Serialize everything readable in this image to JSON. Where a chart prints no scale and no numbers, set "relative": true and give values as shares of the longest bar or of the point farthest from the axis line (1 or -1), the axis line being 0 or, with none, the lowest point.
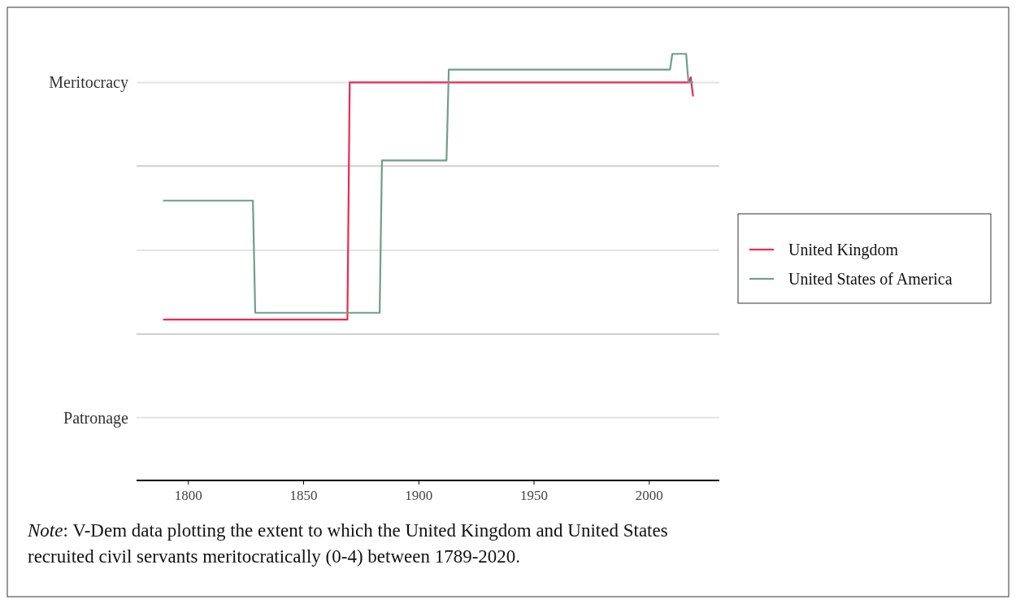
{
  "chart_data": {
    "type": "line",
    "relative": true,
    "xlim": [
      1777.5,
      2030.4
    ],
    "xticks": [
      1800,
      1850,
      1900,
      1950,
      2000
    ],
    "legend": "right",
    "line_style": "solid",
    "series": [
      {
        "name": "United Kingdom",
        "color": "#f0284f",
        "x": [
          1789,
          1869,
          1870,
          2017,
          2018,
          2019
        ],
        "values": [
          0.377,
          0.377,
          0.933,
          0.933,
          0.945,
          0.9
        ]
      },
      {
        "name": "United States of America",
        "color": "#6f9e8a",
        "x": [
          1789,
          1828,
          1829,
          1883,
          1884,
          1912,
          1913,
          2009,
          2010,
          2016,
          2017,
          2019
        ],
        "values": [
          0.656,
          0.656,
          0.393,
          0.393,
          0.75,
          0.75,
          0.963,
          0.963,
          1,
          1,
          0.933,
          0.933
        ]
      }
    ],
    "ref_lines": [
      {
        "axis": "y",
        "value": 0.147,
        "label": "Patronage",
        "color": "#e3e3e3"
      },
      {
        "axis": "y",
        "value": 0.343,
        "label": null,
        "color": "#cfcfcf"
      },
      {
        "axis": "y",
        "value": 0.54,
        "label": null,
        "color": "#e3e3e3"
      },
      {
        "axis": "y",
        "value": 0.737,
        "label": null,
        "color": "#cfcfcf"
      },
      {
        "axis": "y",
        "value": 0.933,
        "label": "Meritocracy",
        "color": "#e3e3e3"
      }
    ],
    "annotations": [
      "Note: V-Dem data plotting the extent to which the United Kingdom and United States recruited civil servants meritocratically (0-4) between 1789-2020."
    ]
  }
}
